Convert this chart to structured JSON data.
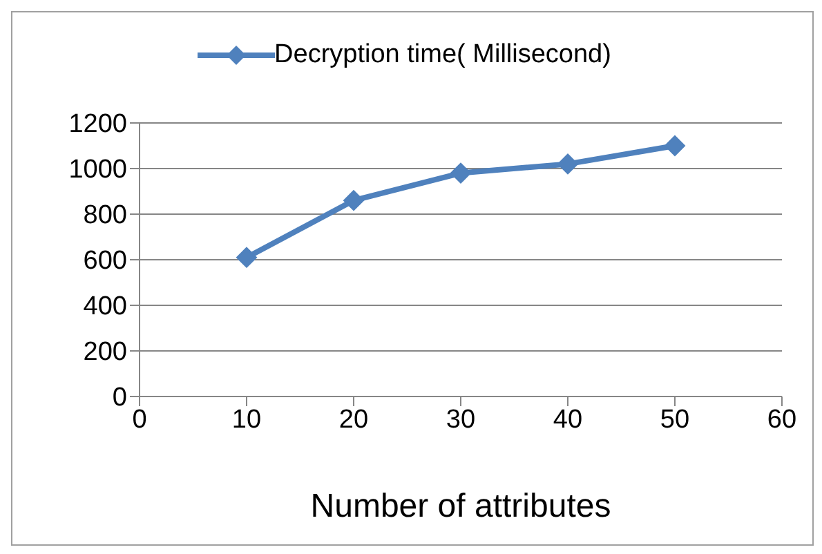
{
  "chart_data": {
    "type": "line",
    "xlabel": "Number of attributes",
    "x": [
      10,
      20,
      30,
      40,
      50
    ],
    "series": [
      {
        "name": "Decryption time( Millisecond)",
        "color": "#4f81bd",
        "values": [
          610,
          860,
          980,
          1020,
          1100
        ]
      }
    ],
    "xlim": [
      0,
      60
    ],
    "xticks": [
      0,
      10,
      20,
      30,
      40,
      50,
      60
    ],
    "ylim": [
      0,
      1200
    ],
    "yticks": [
      0,
      200,
      400,
      600,
      800,
      1000,
      1200
    ],
    "grid": "y",
    "legend": "top",
    "marker": "diamond",
    "line_style": "solid"
  }
}
